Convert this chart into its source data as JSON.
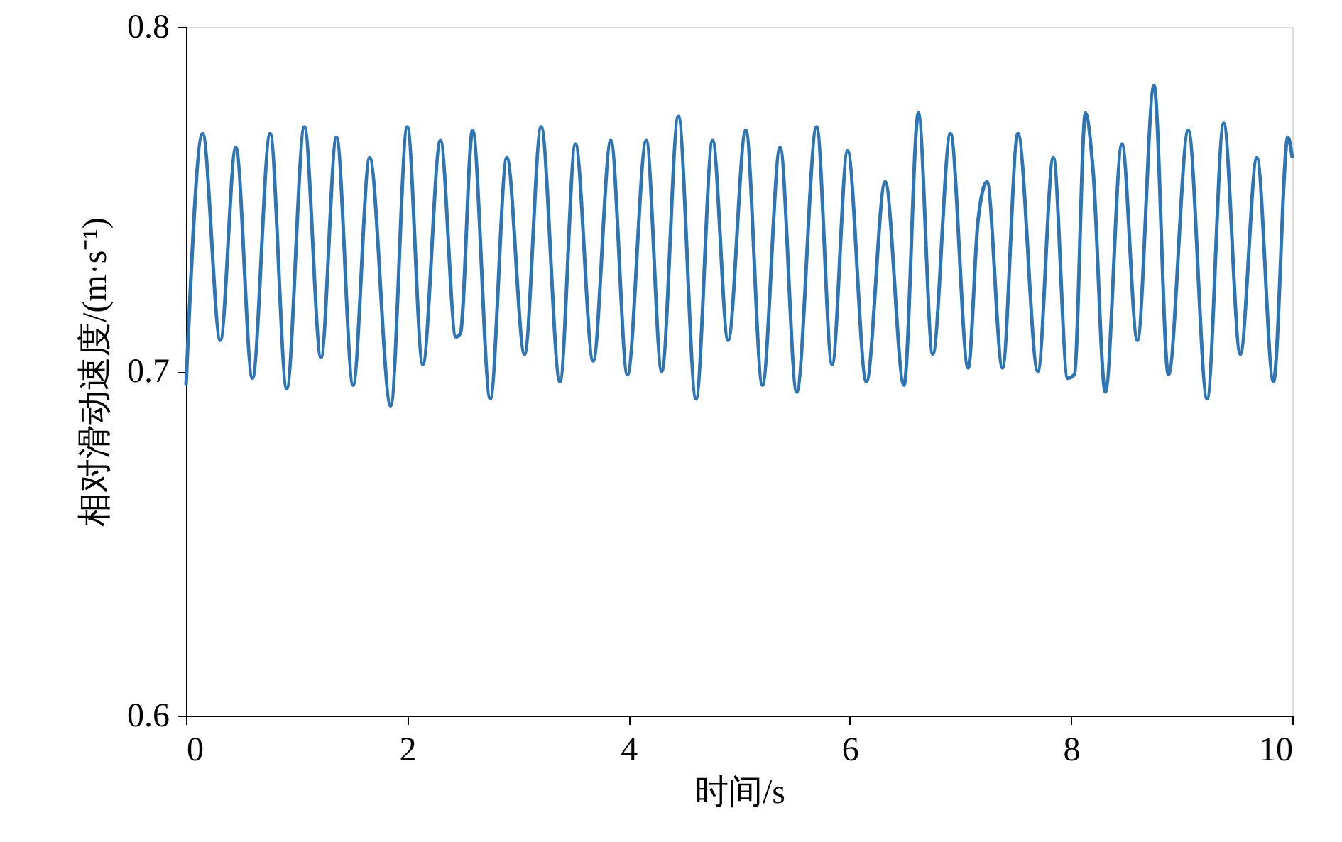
{
  "chart_data": {
    "type": "line",
    "xlabel": "时间/s",
    "ylabel": "相对滑动速度/(m·s⁻¹)",
    "xlim": [
      0,
      10
    ],
    "xticks": [
      0,
      2,
      4,
      6,
      8,
      10
    ],
    "ylim": [
      0.6,
      0.8
    ],
    "yticks": [
      0.6,
      0.7,
      0.8
    ],
    "grid": false,
    "line_style": "solid",
    "marker": "none",
    "series": [
      {
        "color": "#2e75b6",
        "x": [
          0,
          0.15,
          0.31,
          0.45,
          0.6,
          0.76,
          0.91,
          1.07,
          1.22,
          1.36,
          1.51,
          1.66,
          1.85,
          2.0,
          2.14,
          2.3,
          2.44,
          2.48,
          2.59,
          2.75,
          2.9,
          3.06,
          3.21,
          3.38,
          3.52,
          3.68,
          3.84,
          3.99,
          4.16,
          4.3,
          4.45,
          4.61,
          4.76,
          4.9,
          5.06,
          5.21,
          5.37,
          5.52,
          5.7,
          5.84,
          5.98,
          6.15,
          6.32,
          6.49,
          6.62,
          6.75,
          6.91,
          7.07,
          7.16,
          7.24,
          7.38,
          7.52,
          7.7,
          7.84,
          7.97,
          8.03,
          8.13,
          8.2,
          8.31,
          8.46,
          8.6,
          8.75,
          8.88,
          9.06,
          9.23,
          9.38,
          9.53,
          9.68,
          9.83,
          9.96,
          10.0
        ],
        "values": [
          0.696,
          0.769,
          0.709,
          0.765,
          0.698,
          0.769,
          0.695,
          0.771,
          0.704,
          0.768,
          0.696,
          0.762,
          0.69,
          0.771,
          0.702,
          0.767,
          0.71,
          0.711,
          0.77,
          0.692,
          0.762,
          0.705,
          0.771,
          0.697,
          0.766,
          0.703,
          0.767,
          0.699,
          0.767,
          0.7,
          0.774,
          0.692,
          0.767,
          0.709,
          0.77,
          0.696,
          0.765,
          0.694,
          0.771,
          0.702,
          0.764,
          0.697,
          0.755,
          0.696,
          0.775,
          0.705,
          0.769,
          0.701,
          0.744,
          0.755,
          0.701,
          0.769,
          0.7,
          0.762,
          0.698,
          0.699,
          0.775,
          0.758,
          0.694,
          0.766,
          0.709,
          0.783,
          0.699,
          0.77,
          0.692,
          0.772,
          0.705,
          0.762,
          0.697,
          0.768,
          0.762
        ]
      }
    ]
  }
}
